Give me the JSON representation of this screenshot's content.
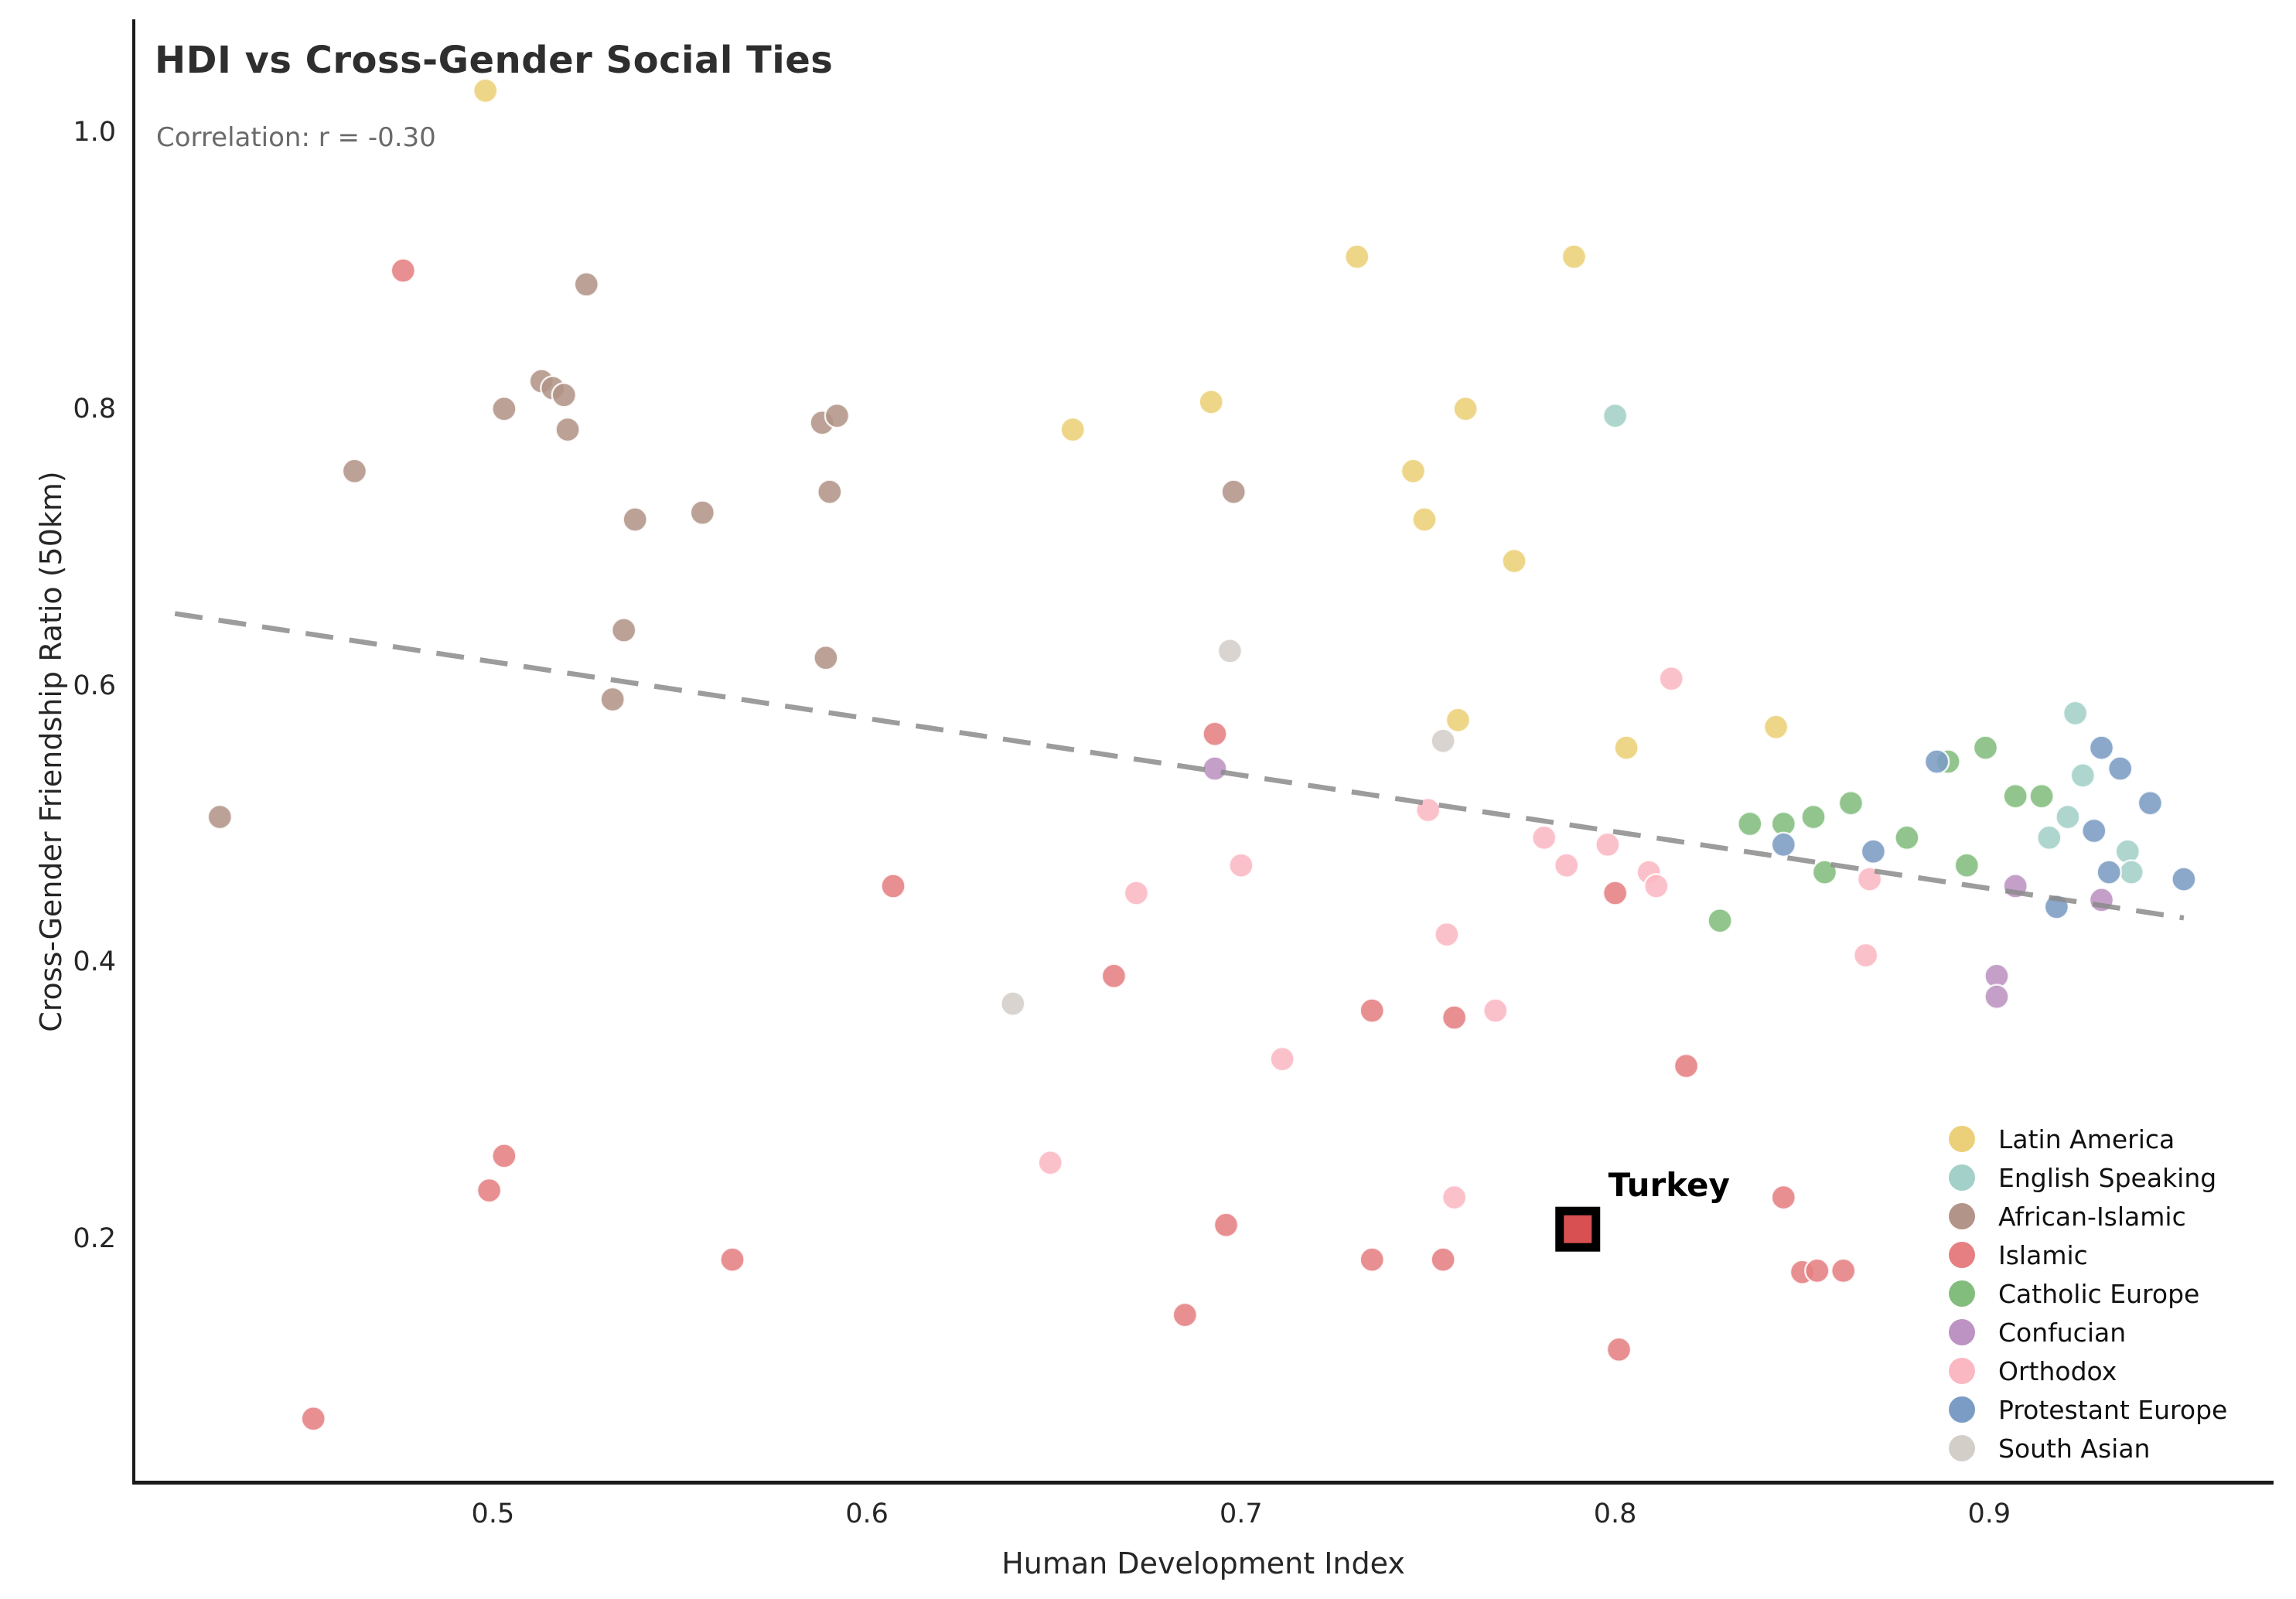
{
  "title": "HDI vs Cross-Gender Social Ties",
  "subtitle": "Correlation: r = -0.30",
  "chart_data": {
    "type": "scatter",
    "title": "HDI vs Cross-Gender Social Ties",
    "annotation_text": "Correlation: r = -0.30",
    "xlabel": "Human Development Index",
    "ylabel": "Cross-Gender Friendship Ratio (50km)",
    "xlim": [
      0.404,
      0.976
    ],
    "ylim": [
      0.0235,
      1.0816
    ],
    "xticks": [
      0.5,
      0.6,
      0.7,
      0.8,
      0.9
    ],
    "yticks": [
      1.0,
      0.8,
      0.6,
      0.4,
      0.2
    ],
    "grid": false,
    "legend_position": "lower right",
    "trend_line": {
      "style": "dashed",
      "color": "#8b8b8b",
      "x1": 0.415,
      "y1": 0.652,
      "x2": 0.952,
      "y2": 0.432
    },
    "highlight": {
      "label": "Turkey",
      "x": 0.79,
      "y": 0.207,
      "marker": "square",
      "fill": "#d85052",
      "edge": "#000000",
      "label_dx": 118,
      "label_dy": -57
    },
    "series": [
      {
        "name": "Latin America",
        "color": "#ecd079",
        "points": [
          [
            0.498,
            1.03
          ],
          [
            0.731,
            0.91
          ],
          [
            0.789,
            0.91
          ],
          [
            0.692,
            0.805
          ],
          [
            0.76,
            0.8
          ],
          [
            0.655,
            0.785
          ],
          [
            0.746,
            0.755
          ],
          [
            0.749,
            0.72
          ],
          [
            0.773,
            0.69
          ],
          [
            0.758,
            0.575
          ],
          [
            0.803,
            0.555
          ],
          [
            0.843,
            0.57
          ]
        ]
      },
      {
        "name": "English Speaking",
        "color": "#a3d0c8",
        "points": [
          [
            0.8,
            0.795
          ],
          [
            0.923,
            0.58
          ],
          [
            0.925,
            0.535
          ],
          [
            0.921,
            0.505
          ],
          [
            0.916,
            0.49
          ],
          [
            0.937,
            0.48
          ],
          [
            0.938,
            0.465
          ]
        ]
      },
      {
        "name": "African-Islamic",
        "color": "#b29488",
        "points": [
          [
            0.427,
            0.505
          ],
          [
            0.463,
            0.755
          ],
          [
            0.503,
            0.8
          ],
          [
            0.513,
            0.82
          ],
          [
            0.516,
            0.815
          ],
          [
            0.519,
            0.81
          ],
          [
            0.52,
            0.785
          ],
          [
            0.525,
            0.89
          ],
          [
            0.532,
            0.59
          ],
          [
            0.535,
            0.64
          ],
          [
            0.538,
            0.72
          ],
          [
            0.556,
            0.725
          ],
          [
            0.588,
            0.79
          ],
          [
            0.592,
            0.795
          ],
          [
            0.59,
            0.74
          ],
          [
            0.589,
            0.62
          ],
          [
            0.698,
            0.74
          ]
        ]
      },
      {
        "name": "Islamic",
        "color": "#e57f82",
        "points": [
          [
            0.452,
            0.07
          ],
          [
            0.476,
            0.9
          ],
          [
            0.499,
            0.235
          ],
          [
            0.503,
            0.26
          ],
          [
            0.564,
            0.185
          ],
          [
            0.607,
            0.455
          ],
          [
            0.666,
            0.39
          ],
          [
            0.685,
            0.145
          ],
          [
            0.693,
            0.565
          ],
          [
            0.696,
            0.21
          ],
          [
            0.735,
            0.365
          ],
          [
            0.735,
            0.185
          ],
          [
            0.754,
            0.185
          ],
          [
            0.757,
            0.36
          ],
          [
            0.8,
            0.45
          ],
          [
            0.801,
            0.12
          ],
          [
            0.819,
            0.325
          ],
          [
            0.845,
            0.23
          ],
          [
            0.85,
            0.176
          ],
          [
            0.854,
            0.177
          ],
          [
            0.861,
            0.177
          ]
        ]
      },
      {
        "name": "Catholic Europe",
        "color": "#83bd7e",
        "points": [
          [
            0.828,
            0.43
          ],
          [
            0.836,
            0.5
          ],
          [
            0.845,
            0.5
          ],
          [
            0.853,
            0.505
          ],
          [
            0.856,
            0.465
          ],
          [
            0.863,
            0.515
          ],
          [
            0.878,
            0.49
          ],
          [
            0.889,
            0.545
          ],
          [
            0.894,
            0.47
          ],
          [
            0.899,
            0.555
          ],
          [
            0.907,
            0.52
          ],
          [
            0.914,
            0.52
          ]
        ]
      },
      {
        "name": "Confucian",
        "color": "#bc93c2",
        "points": [
          [
            0.693,
            0.54
          ],
          [
            0.902,
            0.39
          ],
          [
            0.902,
            0.375
          ],
          [
            0.907,
            0.455
          ],
          [
            0.93,
            0.445
          ]
        ]
      },
      {
        "name": "Orthodox",
        "color": "#fab8c3",
        "points": [
          [
            0.649,
            0.255
          ],
          [
            0.672,
            0.45
          ],
          [
            0.7,
            0.47
          ],
          [
            0.711,
            0.33
          ],
          [
            0.75,
            0.51
          ],
          [
            0.755,
            0.42
          ],
          [
            0.757,
            0.23
          ],
          [
            0.768,
            0.365
          ],
          [
            0.781,
            0.49
          ],
          [
            0.787,
            0.47
          ],
          [
            0.798,
            0.485
          ],
          [
            0.809,
            0.465
          ],
          [
            0.811,
            0.455
          ],
          [
            0.815,
            0.605
          ],
          [
            0.867,
            0.405
          ],
          [
            0.868,
            0.46
          ]
        ]
      },
      {
        "name": "Protestant Europe",
        "color": "#7b9cc4",
        "points": [
          [
            0.845,
            0.485
          ],
          [
            0.869,
            0.48
          ],
          [
            0.886,
            0.545
          ],
          [
            0.918,
            0.44
          ],
          [
            0.928,
            0.495
          ],
          [
            0.93,
            0.555
          ],
          [
            0.932,
            0.465
          ],
          [
            0.935,
            0.54
          ],
          [
            0.943,
            0.515
          ],
          [
            0.952,
            0.46
          ]
        ]
      },
      {
        "name": "South Asian",
        "color": "#d4cec9",
        "points": [
          [
            0.639,
            0.37
          ],
          [
            0.697,
            0.625
          ],
          [
            0.754,
            0.56
          ]
        ]
      }
    ]
  },
  "axes": {
    "x_tick_labels": [
      "0.5",
      "0.6",
      "0.7",
      "0.8",
      "0.9"
    ],
    "y_tick_labels": [
      "1.0",
      "0.8",
      "0.6",
      "0.4",
      "0.2"
    ],
    "xlabel": "Human Development Index",
    "ylabel": "Cross-Gender Friendship Ratio (50km)"
  }
}
